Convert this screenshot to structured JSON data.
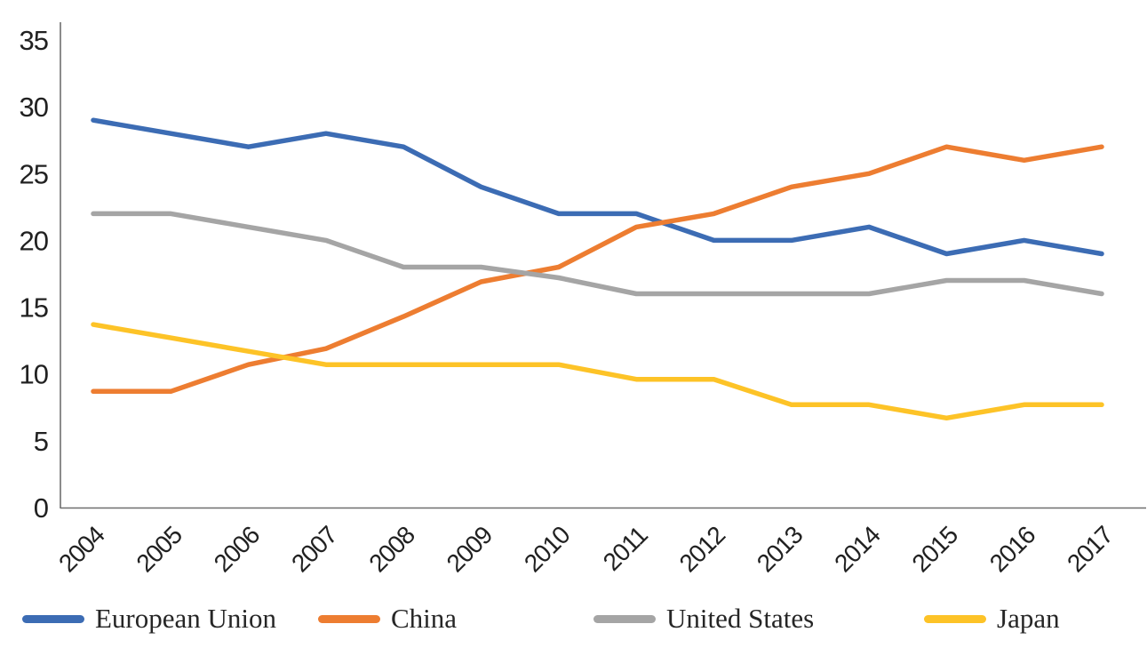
{
  "chart_data": {
    "type": "line",
    "title": "",
    "xlabel": "",
    "ylabel": "",
    "x": [
      2004,
      2005,
      2006,
      2007,
      2008,
      2009,
      2010,
      2011,
      2012,
      2013,
      2014,
      2015,
      2016,
      2017
    ],
    "series": [
      {
        "name": "European Union",
        "color": "#3C6CB4",
        "values": [
          29,
          28,
          27,
          28,
          27,
          24,
          22,
          22,
          20,
          20,
          21,
          19,
          20,
          19
        ]
      },
      {
        "name": "China",
        "color": "#ED7D31",
        "values": [
          8.7,
          8.7,
          10.7,
          11.9,
          14.3,
          16.9,
          18,
          21,
          22,
          24,
          25,
          27,
          26,
          27
        ]
      },
      {
        "name": "United States",
        "color": "#A5A5A5",
        "values": [
          22,
          22,
          21,
          20,
          18,
          18,
          17.2,
          16,
          16,
          16,
          16,
          17,
          17,
          16
        ]
      },
      {
        "name": "Japan",
        "color": "#FDC327",
        "values": [
          13.7,
          12.7,
          11.7,
          10.7,
          10.7,
          10.7,
          10.7,
          9.6,
          9.6,
          7.7,
          7.7,
          6.7,
          7.7,
          7.7
        ]
      }
    ],
    "ylim": [
      0,
      35
    ],
    "yticks": [
      0,
      5,
      10,
      15,
      20,
      25,
      30,
      35
    ],
    "grid": false,
    "legend_position": "bottom",
    "axis_color": "#6E6E6E",
    "tick_label_color": "#212121"
  }
}
